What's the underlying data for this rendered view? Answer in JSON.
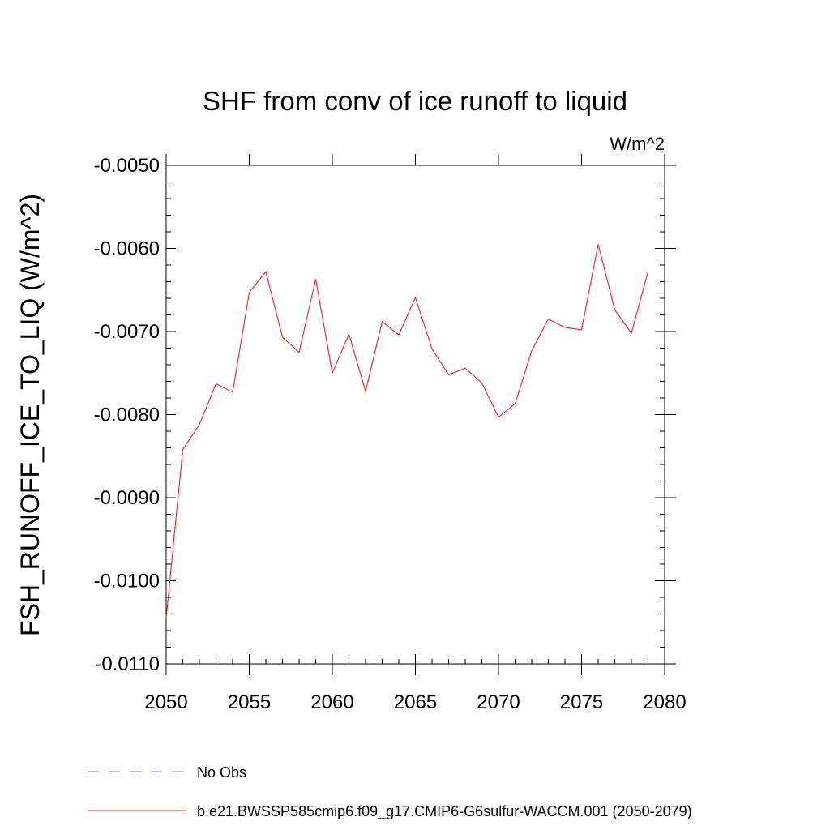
{
  "chart_data": {
    "type": "line",
    "title": "SHF from conv of ice runoff to liquid",
    "units_label": "W/m^2",
    "ylabel": "FSH_RUNOFF_ICE_TO_LIQ  (W/m^2)",
    "xlabel": "",
    "xlim": [
      2050,
      2080
    ],
    "ylim": [
      -0.011,
      -0.005
    ],
    "x_ticks": [
      "2050",
      "2055",
      "2060",
      "2065",
      "2070",
      "2075",
      "2080"
    ],
    "y_ticks": [
      "-0.0050",
      "-0.0060",
      "-0.0070",
      "-0.0080",
      "-0.0090",
      "-0.0100",
      "-0.0110"
    ],
    "grid": false,
    "legend_position": "bottom-left",
    "series": [
      {
        "name": "No Obs",
        "color": "#7b6fb0",
        "dashed": true,
        "x": [],
        "values": []
      },
      {
        "name": "b.e21.BWSSP585cmip6.f09_g17.CMIP6-G6sulfur-WACCM.001 (2050-2079)",
        "color": "#e8202a",
        "dashed": false,
        "x": [
          2050,
          2051,
          2052,
          2053,
          2054,
          2055,
          2056,
          2057,
          2058,
          2059,
          2060,
          2061,
          2062,
          2063,
          2064,
          2065,
          2066,
          2067,
          2068,
          2069,
          2070,
          2071,
          2072,
          2073,
          2074,
          2075,
          2076,
          2077,
          2078,
          2079
        ],
        "values": [
          -0.01045,
          -0.00842,
          -0.00812,
          -0.00763,
          -0.00773,
          -0.00653,
          -0.00628,
          -0.00707,
          -0.00725,
          -0.00637,
          -0.0075,
          -0.00703,
          -0.00772,
          -0.00688,
          -0.00704,
          -0.00659,
          -0.00721,
          -0.00752,
          -0.00744,
          -0.00762,
          -0.00803,
          -0.00787,
          -0.00723,
          -0.00685,
          -0.00695,
          -0.00698,
          -0.00595,
          -0.00674,
          -0.00702,
          -0.00628
        ]
      }
    ]
  }
}
